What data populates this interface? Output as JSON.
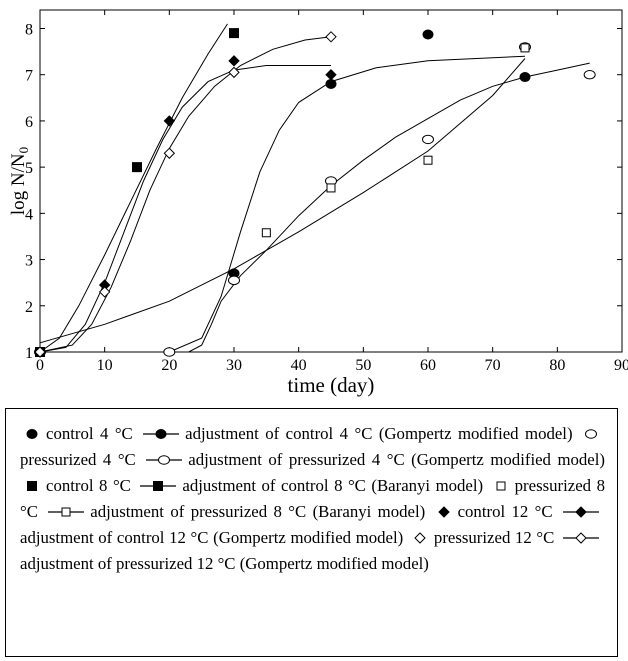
{
  "chart_data": {
    "type": "scatter",
    "xlabel": "time (day)",
    "ylabel": "log N/N",
    "ylabel_sub": "0",
    "xlim": [
      0,
      90
    ],
    "ylim": [
      1,
      8.4
    ],
    "xticks": [
      "0",
      "10",
      "20",
      "30",
      "40",
      "50",
      "60",
      "70",
      "80",
      "90"
    ],
    "yticks": [
      "1",
      "2",
      "3",
      "4",
      "5",
      "6",
      "7",
      "8"
    ],
    "grid": false,
    "series": [
      {
        "name": "control 4 °C",
        "fit_name": "adjustment of control 4 °C (Gompertz modified model)",
        "marker": "filled-circle",
        "points": [
          [
            0,
            1.0
          ],
          [
            30,
            2.7
          ],
          [
            45,
            6.8
          ],
          [
            60,
            7.87
          ],
          [
            75,
            6.95
          ]
        ],
        "fit": [
          [
            0,
            1.0
          ],
          [
            20,
            1.0
          ],
          [
            25,
            1.3
          ],
          [
            28,
            2.2
          ],
          [
            31,
            3.6
          ],
          [
            34,
            4.9
          ],
          [
            37,
            5.8
          ],
          [
            40,
            6.4
          ],
          [
            45,
            6.85
          ],
          [
            52,
            7.15
          ],
          [
            60,
            7.3
          ],
          [
            75,
            7.4
          ]
        ]
      },
      {
        "name": "pressurized 4 °C",
        "fit_name": "adjustment of pressurized 4 °C (Gompertz modified model)",
        "marker": "open-circle",
        "points": [
          [
            0,
            1.0
          ],
          [
            20,
            1.0
          ],
          [
            30,
            2.55
          ],
          [
            45,
            4.7
          ],
          [
            60,
            5.6
          ],
          [
            75,
            7.6
          ],
          [
            85,
            7.0
          ]
        ],
        "fit": [
          [
            0,
            1.0
          ],
          [
            23,
            1.0
          ],
          [
            25,
            1.15
          ],
          [
            26.5,
            1.6
          ],
          [
            28,
            2.1
          ],
          [
            31,
            2.65
          ],
          [
            35,
            3.2
          ],
          [
            40,
            3.95
          ],
          [
            45,
            4.6
          ],
          [
            50,
            5.15
          ],
          [
            55,
            5.65
          ],
          [
            60,
            6.05
          ],
          [
            65,
            6.45
          ],
          [
            70,
            6.75
          ],
          [
            75,
            6.95
          ],
          [
            80,
            7.1
          ],
          [
            85,
            7.25
          ]
        ]
      },
      {
        "name": "control 8 °C",
        "fit_name": "adjustment of control 8 °C (Baranyi model)",
        "marker": "filled-square",
        "points": [
          [
            0,
            1.0
          ],
          [
            15,
            5.0
          ],
          [
            30,
            7.9
          ]
        ],
        "fit": [
          [
            0,
            1.0
          ],
          [
            3,
            1.3
          ],
          [
            6,
            2.0
          ],
          [
            10,
            3.1
          ],
          [
            14,
            4.25
          ],
          [
            18,
            5.4
          ],
          [
            22,
            6.5
          ],
          [
            26,
            7.45
          ],
          [
            29,
            8.1
          ]
        ]
      },
      {
        "name": "pressurized 8 °C",
        "fit_name": "adjustment of pressurized 8 °C (Baranyi model)",
        "marker": "open-square",
        "points": [
          [
            35,
            3.58
          ],
          [
            45,
            4.55
          ],
          [
            60,
            5.15
          ],
          [
            75,
            7.58
          ]
        ],
        "fit": [
          [
            0,
            1.2
          ],
          [
            10,
            1.6
          ],
          [
            20,
            2.1
          ],
          [
            30,
            2.8
          ],
          [
            40,
            3.6
          ],
          [
            50,
            4.45
          ],
          [
            60,
            5.35
          ],
          [
            70,
            6.55
          ],
          [
            75,
            7.35
          ]
        ]
      },
      {
        "name": "control 12 °C",
        "fit_name": "adjustment of control 12 °C (Gompertz modified model)",
        "marker": "filled-diamond",
        "points": [
          [
            0,
            1.0
          ],
          [
            10,
            2.45
          ],
          [
            20,
            6.0
          ],
          [
            30,
            7.3
          ],
          [
            45,
            7.0
          ]
        ],
        "fit": [
          [
            0,
            1.0
          ],
          [
            4,
            1.1
          ],
          [
            7,
            1.6
          ],
          [
            10,
            2.5
          ],
          [
            13,
            3.6
          ],
          [
            16,
            4.7
          ],
          [
            19,
            5.6
          ],
          [
            22,
            6.3
          ],
          [
            26,
            6.85
          ],
          [
            30,
            7.1
          ],
          [
            35,
            7.2
          ],
          [
            45,
            7.2
          ]
        ]
      },
      {
        "name": "pressurized 12 °C",
        "fit_name": "adjustment of pressurized 12 °C (Gompertz modified model)",
        "marker": "open-diamond",
        "points": [
          [
            0,
            1.0
          ],
          [
            10,
            2.3
          ],
          [
            20,
            5.3
          ],
          [
            30,
            7.05
          ],
          [
            45,
            7.82
          ]
        ],
        "fit": [
          [
            0,
            1.0
          ],
          [
            5,
            1.15
          ],
          [
            8,
            1.6
          ],
          [
            11,
            2.4
          ],
          [
            14,
            3.4
          ],
          [
            17,
            4.5
          ],
          [
            20,
            5.4
          ],
          [
            23,
            6.1
          ],
          [
            27,
            6.75
          ],
          [
            31,
            7.2
          ],
          [
            36,
            7.55
          ],
          [
            41,
            7.75
          ],
          [
            45,
            7.82
          ]
        ]
      }
    ]
  },
  "legend": {
    "entries": [
      {
        "marker": "filled-circle",
        "kind": "point",
        "text": "control 4 °C"
      },
      {
        "marker": "filled-circle",
        "kind": "line",
        "text": "adjustment of control 4 °C (Gompertz modified model)"
      },
      {
        "marker": "open-circle",
        "kind": "point",
        "text": "pressurized 4 °C"
      },
      {
        "marker": "open-circle",
        "kind": "line",
        "text": "adjustment of pressurized 4 °C (Gompertz modified model)"
      },
      {
        "marker": "filled-square",
        "kind": "point",
        "text": "control 8 °C"
      },
      {
        "marker": "filled-square",
        "kind": "line",
        "text": "adjustment of control 8 °C (Baranyi model)"
      },
      {
        "marker": "open-square",
        "kind": "point",
        "text": "pressurized 8 °C"
      },
      {
        "marker": "open-square",
        "kind": "line",
        "text": "adjustment of pressurized 8 °C (Baranyi model)"
      },
      {
        "marker": "filled-diamond",
        "kind": "point",
        "text": "control 12 °C"
      },
      {
        "marker": "filled-diamond",
        "kind": "line",
        "text": "adjustment of control 12 °C (Gompertz modified model)"
      },
      {
        "marker": "open-diamond",
        "kind": "point",
        "text": "pressurized 12 °C"
      },
      {
        "marker": "open-diamond",
        "kind": "line",
        "text": "adjustment of pressurized 12 °C (Gompertz modified model)"
      }
    ]
  }
}
